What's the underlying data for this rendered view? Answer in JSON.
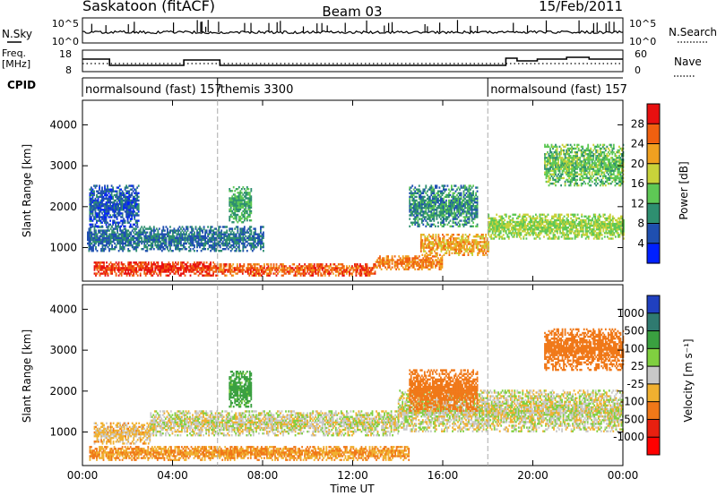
{
  "header": {
    "station": "Saskatoon (fitACF)",
    "beam": "Beam 03",
    "date": "15/Feb/2011"
  },
  "nsky_panel": {
    "left_label": "N.Sky",
    "right_label": "N.Search",
    "left_ticks": [
      "10^5",
      "10^0"
    ],
    "right_ticks": [
      "10^5",
      "10^0"
    ]
  },
  "freq_panel": {
    "left_label_1": "Freq.",
    "left_label_2": "[MHz]",
    "right_label": "Nave",
    "left_ticks": [
      "18",
      "8"
    ],
    "right_ticks": [
      "60",
      "0"
    ]
  },
  "cpid": {
    "label": "CPID",
    "segments": [
      {
        "text": "normalsound (fast) 157",
        "start_hour": 0
      },
      {
        "text": "themis 3300",
        "start_hour": 6
      },
      {
        "text": "normalsound (fast) 157",
        "start_hour": 18
      }
    ]
  },
  "axes": {
    "ylabel": "Slant Range [km]",
    "xlabel": "Time UT",
    "x_ticks": [
      "00:00",
      "04:00",
      "08:00",
      "12:00",
      "16:00",
      "20:00",
      "00:00"
    ],
    "y_ticks": [
      "1000",
      "2000",
      "3000",
      "4000"
    ]
  },
  "power_colorbar": {
    "label": "Power [dB]",
    "ticks": [
      "4",
      "8",
      "12",
      "16",
      "20",
      "24",
      "28"
    ],
    "colors": [
      "#0020ff",
      "#1f4fb0",
      "#2e8f70",
      "#5ec855",
      "#c8d23a",
      "#f0a020",
      "#f06010",
      "#e81010"
    ]
  },
  "velocity_colorbar": {
    "label": "Velocity [m s⁻¹]",
    "ticks": [
      "1000",
      "500",
      "100",
      "25",
      "-25",
      "-100",
      "-500",
      "-1000"
    ],
    "colors": [
      "#2040c0",
      "#2f7a70",
      "#3aa040",
      "#80d040",
      "#c8c8c8",
      "#f0b030",
      "#f07818",
      "#e82010",
      "#ff0000"
    ]
  },
  "chart_data": {
    "type": "heatmap",
    "x_range_hours": [
      0,
      24
    ],
    "y_range_km": [
      180,
      4600
    ],
    "scheme_boundaries_hours": [
      6,
      18
    ],
    "power_bands": [
      {
        "t0": 0.5,
        "t1": 6.0,
        "r0": 300,
        "r1": 650,
        "v": 28
      },
      {
        "t0": 6.0,
        "t1": 13.0,
        "r0": 300,
        "r1": 600,
        "v": 26
      },
      {
        "t0": 13.0,
        "t1": 16.0,
        "r0": 450,
        "r1": 800,
        "v": 24
      },
      {
        "t0": 15.0,
        "t1": 18.0,
        "r0": 800,
        "r1": 1300,
        "v": 22
      },
      {
        "t0": 18.0,
        "t1": 24.0,
        "r0": 1200,
        "r1": 1800,
        "v": 16
      },
      {
        "t0": 0.2,
        "t1": 8.0,
        "r0": 900,
        "r1": 1500,
        "v": 8
      },
      {
        "t0": 0.3,
        "t1": 2.5,
        "r0": 1500,
        "r1": 2500,
        "v": 6
      },
      {
        "t0": 6.5,
        "t1": 7.5,
        "r0": 1600,
        "r1": 2500,
        "v": 12
      },
      {
        "t0": 14.5,
        "t1": 17.5,
        "r0": 1500,
        "r1": 2500,
        "v": 10
      },
      {
        "t0": 20.5,
        "t1": 24.0,
        "r0": 2500,
        "r1": 3500,
        "v": 14
      }
    ],
    "velocity_bands": [
      {
        "t0": 0.3,
        "t1": 14.5,
        "r0": 300,
        "r1": 650,
        "v": -100
      },
      {
        "t0": 0.5,
        "t1": 3.0,
        "r0": 700,
        "r1": 1200,
        "v": -50
      },
      {
        "t0": 3.0,
        "t1": 14.0,
        "r0": 900,
        "r1": 1500,
        "v": 0
      },
      {
        "t0": 14.0,
        "t1": 24.0,
        "r0": 1000,
        "r1": 2000,
        "v": 0
      },
      {
        "t0": 6.5,
        "t1": 7.5,
        "r0": 1600,
        "r1": 2500,
        "v": 150
      },
      {
        "t0": 14.5,
        "t1": 17.5,
        "r0": 1500,
        "r1": 2500,
        "v": -200
      },
      {
        "t0": 20.5,
        "t1": 24.0,
        "r0": 2500,
        "r1": 3500,
        "v": -300
      }
    ]
  }
}
